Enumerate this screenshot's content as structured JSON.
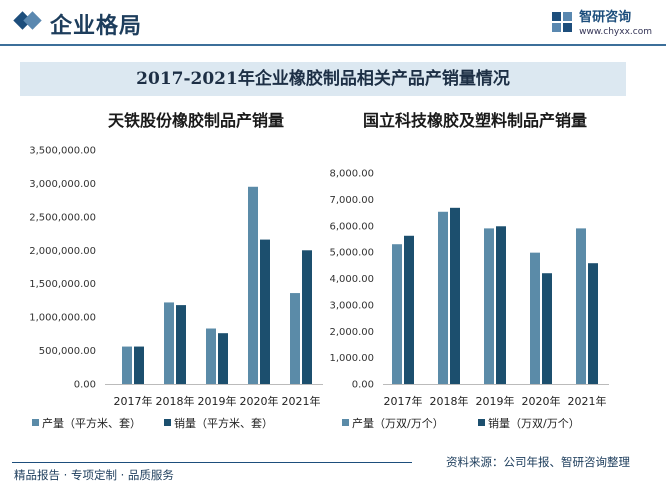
{
  "header": {
    "title": "企业格局",
    "brand_name": "智研咨询",
    "brand_url": "www.chyxx.com"
  },
  "banner": {
    "title": "2017-2021年企业橡胶制品相关产品产销量情况"
  },
  "colors": {
    "production": "#5b8ba8",
    "sales": "#1c4f6e"
  },
  "chart_data": [
    {
      "type": "bar",
      "title": "天铁股份橡胶制品产销量",
      "categories": [
        "2017年",
        "2018年",
        "2019年",
        "2020年",
        "2021年"
      ],
      "series": [
        {
          "name": "产量（平方米、套）",
          "values": [
            560000,
            1220000,
            830000,
            2950000,
            1360000
          ]
        },
        {
          "name": "销量（平方米、套）",
          "values": [
            560000,
            1180000,
            760000,
            2160000,
            2000000
          ]
        }
      ],
      "yticks": [
        "0.00",
        "500,000.00",
        "1,000,000.00",
        "1,500,000.00",
        "2,000,000.00",
        "2,500,000.00",
        "3,000,000.00",
        "3,500,000.00"
      ],
      "ylim": [
        0,
        3500000
      ],
      "xlabel": "",
      "ylabel": ""
    },
    {
      "type": "bar",
      "title": "国立科技橡胶及塑料制品产销量",
      "categories": [
        "2017年",
        "2018年",
        "2019年",
        "2020年",
        "2021年"
      ],
      "series": [
        {
          "name": "产量（万双/万个）",
          "values": [
            5300,
            6530,
            5900,
            4980,
            5900
          ]
        },
        {
          "name": "销量（万双/万个）",
          "values": [
            5620,
            6680,
            5980,
            4200,
            4580
          ]
        }
      ],
      "yticks": [
        "0.00",
        "1,000.00",
        "2,000.00",
        "3,000.00",
        "4,000.00",
        "5,000.00",
        "6,000.00",
        "7,000.00",
        "8,000.00"
      ],
      "ylim": [
        0,
        8000
      ],
      "xlabel": "",
      "ylabel": ""
    }
  ],
  "footer": {
    "left": "精品报告 · 专项定制 · 品质服务",
    "right": "资料来源：公司年报、智研咨询整理"
  }
}
